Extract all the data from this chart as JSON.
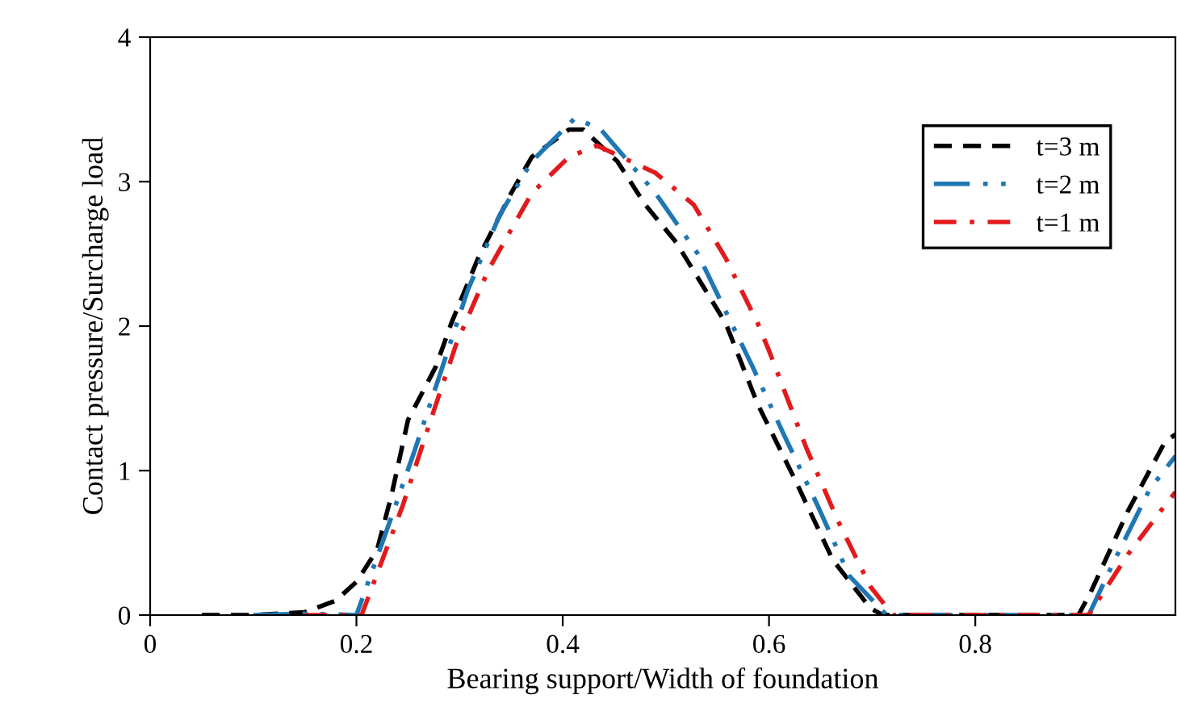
{
  "chart_data": {
    "type": "line",
    "xlabel": "Bearing support/Width of foundation",
    "ylabel": "Contact pressure/Surcharge load",
    "xlim": [
      0,
      0.994
    ],
    "ylim": [
      0,
      4
    ],
    "xticks": [
      0,
      0.2,
      0.4,
      0.6,
      0.8
    ],
    "yticks": [
      0,
      1,
      2,
      3,
      4
    ],
    "grid": false,
    "legend": "top right",
    "marker": "none",
    "series": [
      {
        "name": "t=3 m",
        "color": "#000000",
        "line_style": "dashed",
        "x": [
          0.05,
          0.1,
          0.15,
          0.18,
          0.2,
          0.22,
          0.234,
          0.25,
          0.277,
          0.292,
          0.318,
          0.35,
          0.37,
          0.406,
          0.42,
          0.453,
          0.48,
          0.51,
          0.558,
          0.589,
          0.625,
          0.662,
          0.698,
          0.71,
          0.8,
          0.9,
          0.912,
          0.948,
          0.984,
          0.994
        ],
        "values": [
          0,
          0,
          0.02,
          0.1,
          0.23,
          0.45,
          0.83,
          1.35,
          1.72,
          2.02,
          2.47,
          2.92,
          3.17,
          3.36,
          3.36,
          3.14,
          2.84,
          2.58,
          2.02,
          1.46,
          0.94,
          0.38,
          0.05,
          0,
          0,
          0,
          0.16,
          0.72,
          1.2,
          1.25
        ]
      },
      {
        "name": "t=2 m",
        "color": "#1f77b4",
        "line_style": "dashdotdot",
        "x": [
          0.1,
          0.15,
          0.2,
          0.219,
          0.234,
          0.256,
          0.277,
          0.308,
          0.339,
          0.37,
          0.412,
          0.437,
          0.49,
          0.531,
          0.584,
          0.615,
          0.647,
          0.678,
          0.714,
          0.8,
          0.91,
          0.933,
          0.969,
          0.994
        ],
        "values": [
          0,
          0.01,
          0,
          0.38,
          0.68,
          1.13,
          1.58,
          2.25,
          2.77,
          3.14,
          3.44,
          3.36,
          2.92,
          2.5,
          1.72,
          1.24,
          0.76,
          0.27,
          0,
          0,
          0,
          0.35,
          0.87,
          1.1
        ]
      },
      {
        "name": "t=1 m",
        "color": "#e31a1c",
        "line_style": "dashdot",
        "x": [
          0.15,
          0.2,
          0.205,
          0.225,
          0.245,
          0.272,
          0.297,
          0.328,
          0.37,
          0.406,
          0.433,
          0.49,
          0.527,
          0.558,
          0.589,
          0.6,
          0.636,
          0.667,
          0.698,
          0.72,
          0.8,
          0.91,
          0.948,
          0.984,
          0.994
        ],
        "values": [
          0,
          0,
          0,
          0.38,
          0.76,
          1.35,
          1.88,
          2.39,
          2.92,
          3.17,
          3.25,
          3.06,
          2.84,
          2.47,
          2.02,
          1.83,
          1.16,
          0.65,
          0.2,
          0,
          0,
          0,
          0.42,
          0.76,
          0.85
        ]
      }
    ]
  }
}
